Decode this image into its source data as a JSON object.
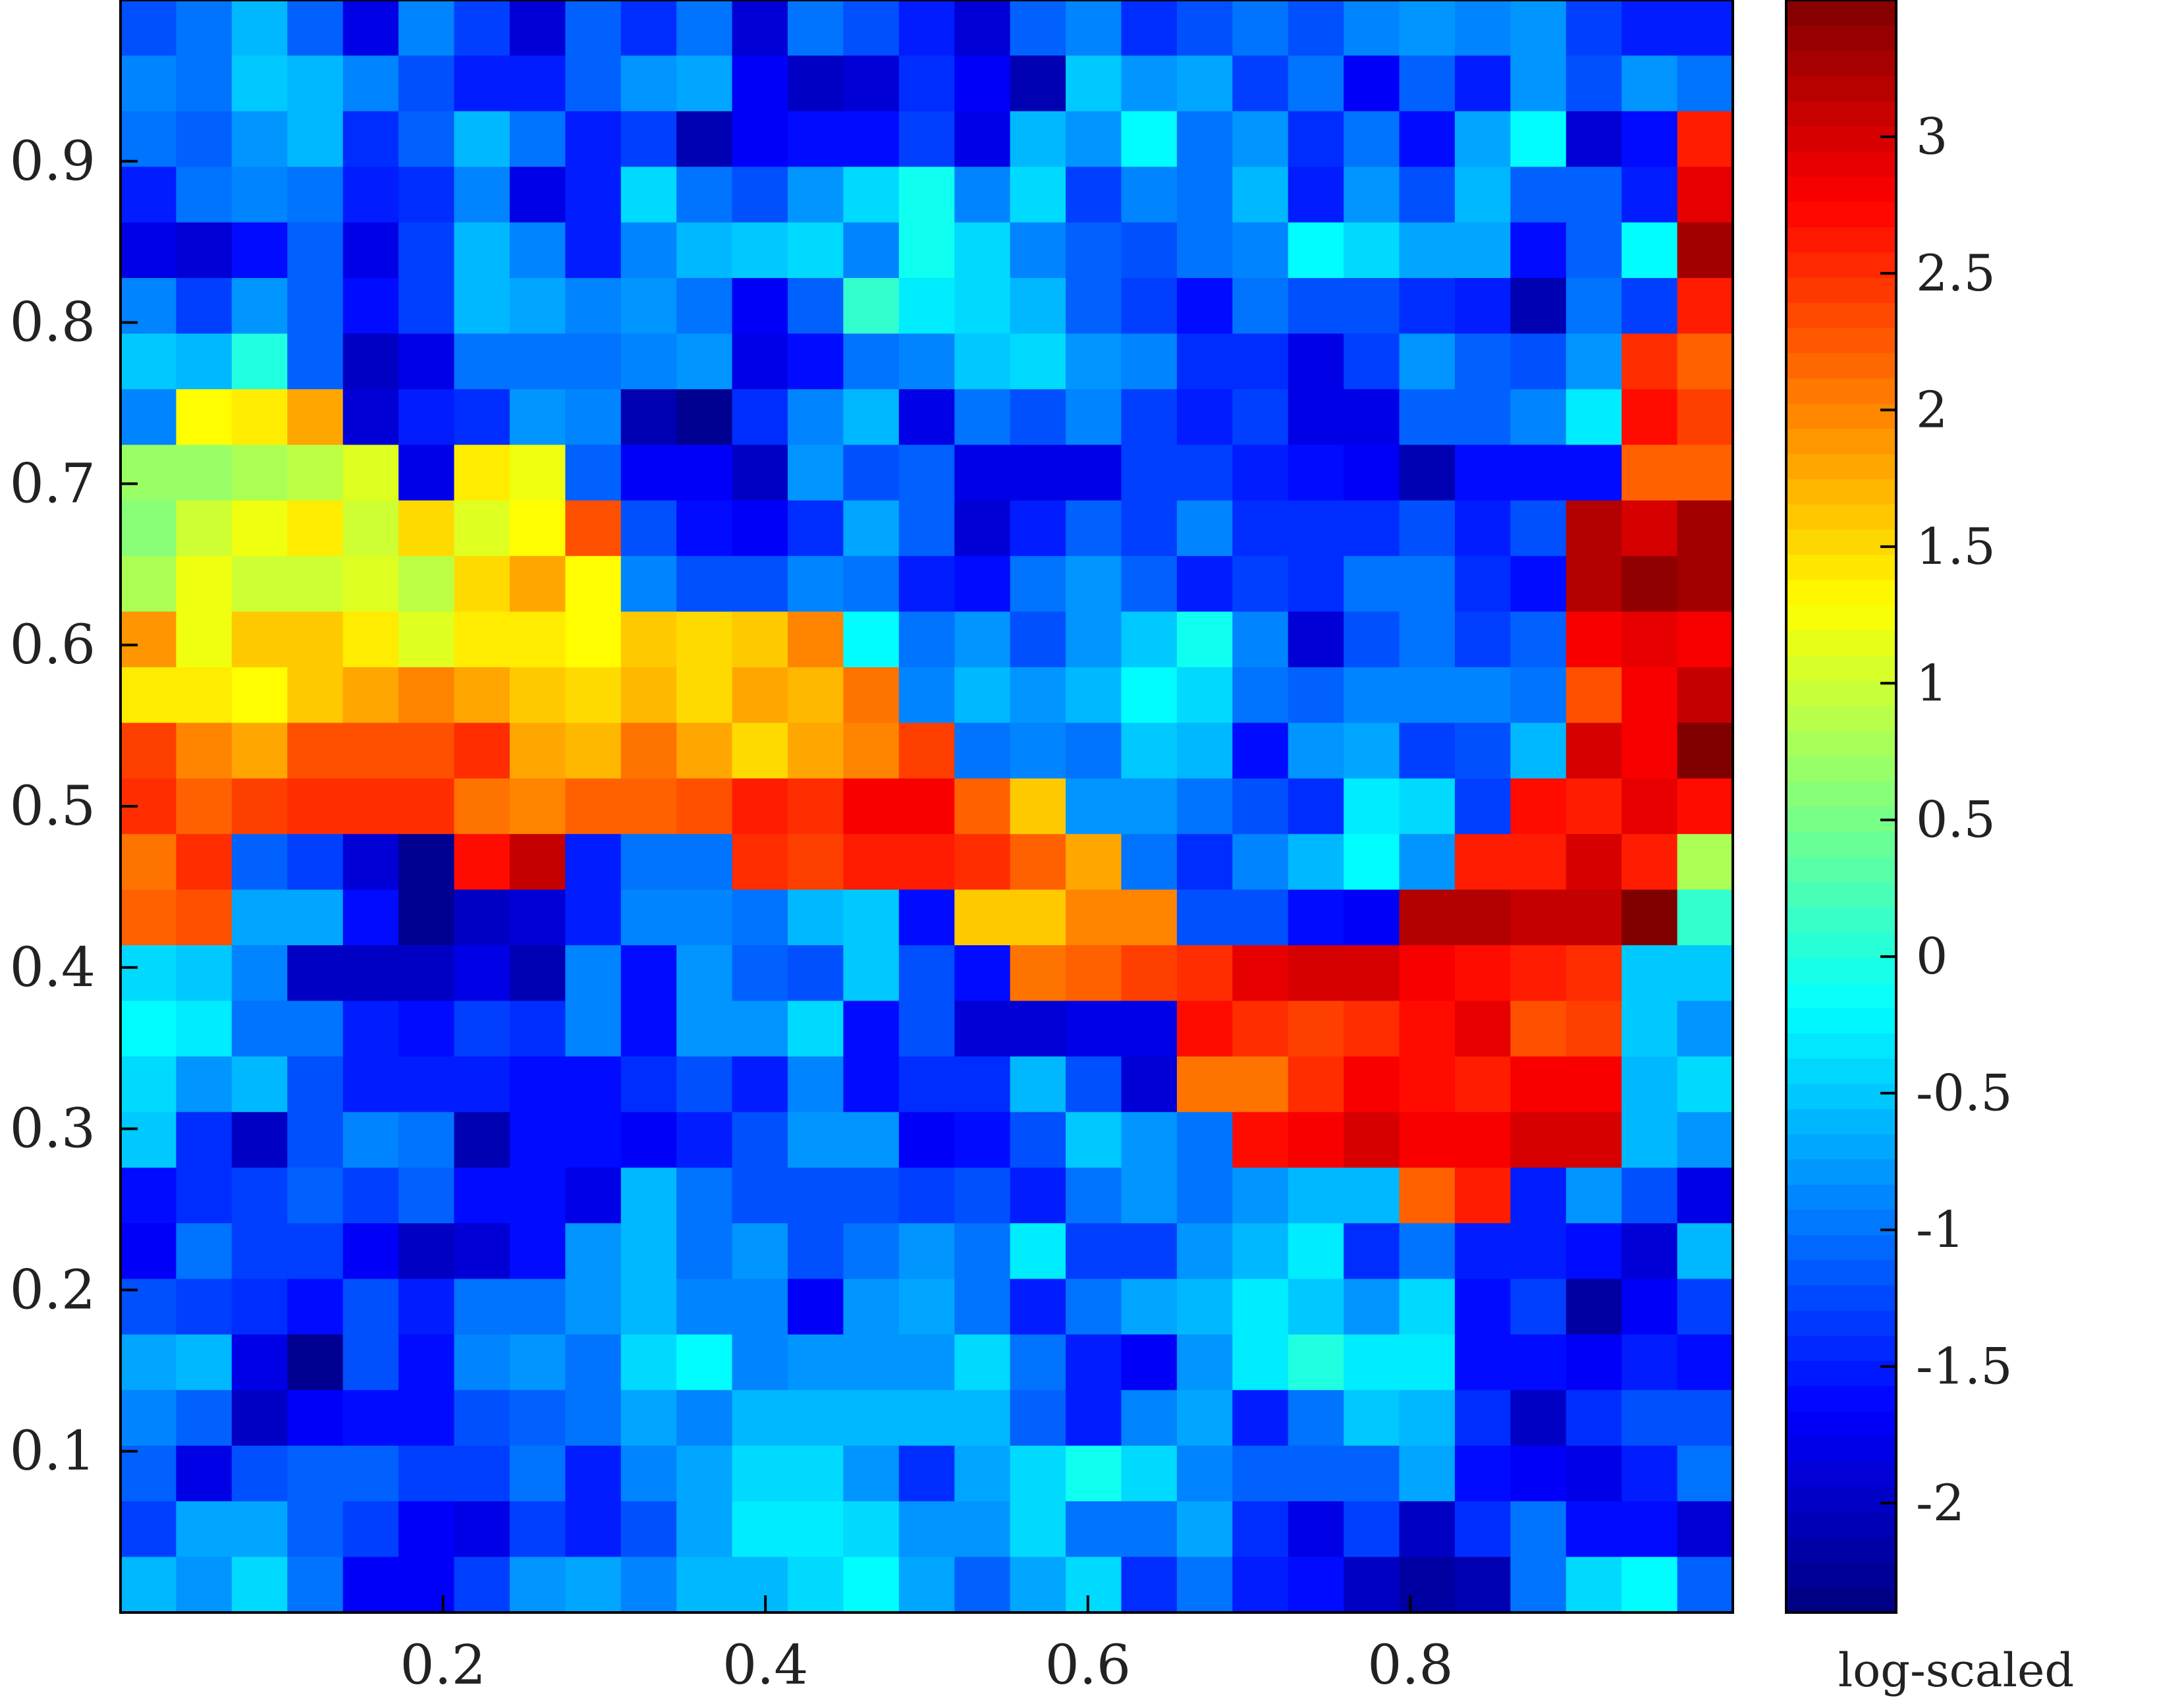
{
  "chart_data": {
    "type": "heatmap",
    "title": "",
    "xlabel": "",
    "ylabel": "",
    "xlim": [
      0,
      1
    ],
    "ylim": [
      0,
      1
    ],
    "n_cols": 29,
    "n_rows": 29,
    "x_ticks": [
      {
        "value": 0.2,
        "label": "0.2"
      },
      {
        "value": 0.4,
        "label": "0.4"
      },
      {
        "value": 0.6,
        "label": "0.6"
      },
      {
        "value": 0.8,
        "label": "0.8"
      }
    ],
    "y_ticks": [
      {
        "value": 0.1,
        "label": "0.1"
      },
      {
        "value": 0.2,
        "label": "0.2"
      },
      {
        "value": 0.3,
        "label": "0.3"
      },
      {
        "value": 0.4,
        "label": "0.4"
      },
      {
        "value": 0.5,
        "label": "0.5"
      },
      {
        "value": 0.6,
        "label": "0.6"
      },
      {
        "value": 0.7,
        "label": "0.7"
      },
      {
        "value": 0.8,
        "label": "0.8"
      },
      {
        "value": 0.9,
        "label": "0.9"
      }
    ],
    "colorbar": {
      "title": "log-scaled",
      "colormap": "jet",
      "min": -2.4,
      "max": 3.5,
      "ticks": [
        {
          "value": -2,
          "label": "-2"
        },
        {
          "value": -1.5,
          "label": "-1.5"
        },
        {
          "value": -1,
          "label": "-1"
        },
        {
          "value": -0.5,
          "label": "-0.5"
        },
        {
          "value": 0,
          "label": "0"
        },
        {
          "value": 0.5,
          "label": "0.5"
        },
        {
          "value": 1,
          "label": "1"
        },
        {
          "value": 1.5,
          "label": "1.5"
        },
        {
          "value": 2,
          "label": "2"
        },
        {
          "value": 2.5,
          "label": "2.5"
        },
        {
          "value": 3,
          "label": "3"
        }
      ]
    },
    "rows_top_to_bottom": [
      [
        -1.2,
        -1.0,
        -0.6,
        -1.1,
        -1.8,
        -0.9,
        -1.3,
        -1.9,
        -1.1,
        -1.4,
        -1.0,
        -1.9,
        -1.0,
        -1.2,
        -1.5,
        -1.9,
        -1.1,
        -0.9,
        -1.4,
        -1.2,
        -1.0,
        -1.2,
        -0.9,
        -0.8,
        -0.9,
        -0.8,
        -1.3,
        -1.5,
        -1.5
      ],
      [
        -0.9,
        -1.0,
        -0.5,
        -0.6,
        -0.9,
        -1.2,
        -1.5,
        -1.5,
        -1.1,
        -0.8,
        -0.7,
        -1.7,
        -2.0,
        -1.9,
        -1.4,
        -1.7,
        -2.1,
        -0.5,
        -0.8,
        -0.7,
        -1.3,
        -1.0,
        -1.7,
        -1.1,
        -1.5,
        -0.8,
        -1.2,
        -0.8,
        -1.0
      ],
      [
        -1.0,
        -1.1,
        -0.8,
        -0.6,
        -1.4,
        -1.1,
        -0.6,
        -1.0,
        -1.5,
        -1.3,
        -2.1,
        -1.7,
        -1.6,
        -1.6,
        -1.3,
        -1.8,
        -0.6,
        -0.8,
        -0.2,
        -1.0,
        -0.8,
        -1.4,
        -1.0,
        -1.6,
        -0.7,
        -0.2,
        -1.9,
        -1.6,
        2.6
      ],
      [
        -1.5,
        -1.0,
        -0.9,
        -1.0,
        -1.5,
        -1.4,
        -0.9,
        -1.8,
        -1.5,
        -0.4,
        -1.0,
        -1.2,
        -0.8,
        -0.4,
        -0.1,
        -0.9,
        -0.4,
        -1.3,
        -0.9,
        -1.0,
        -0.6,
        -1.5,
        -0.8,
        -1.2,
        -0.6,
        -1.1,
        -1.1,
        -1.5,
        2.9
      ],
      [
        -1.8,
        -1.9,
        -1.6,
        -1.1,
        -1.8,
        -1.3,
        -0.6,
        -0.9,
        -1.5,
        -0.9,
        -0.6,
        -0.5,
        -0.4,
        -0.9,
        -0.1,
        -0.4,
        -0.9,
        -1.1,
        -1.2,
        -1.0,
        -0.9,
        -0.2,
        -0.4,
        -0.7,
        -0.7,
        -1.6,
        -1.1,
        -0.2,
        3.3
      ],
      [
        -0.9,
        -1.3,
        -0.8,
        -1.1,
        -1.6,
        -1.3,
        -0.6,
        -0.7,
        -0.9,
        -0.8,
        -1.0,
        -1.7,
        -1.1,
        0.1,
        -0.3,
        -0.4,
        -0.6,
        -1.1,
        -1.3,
        -1.6,
        -1.0,
        -1.2,
        -1.2,
        -1.4,
        -1.5,
        -2.1,
        -1.0,
        -1.3,
        2.6
      ],
      [
        -0.5,
        -0.6,
        0.0,
        -1.1,
        -2.0,
        -1.8,
        -1.0,
        -1.0,
        -1.0,
        -0.9,
        -0.8,
        -1.8,
        -1.6,
        -1.0,
        -0.9,
        -0.5,
        -0.4,
        -0.8,
        -0.9,
        -1.4,
        -1.4,
        -1.8,
        -1.3,
        -0.8,
        -1.1,
        -1.2,
        -0.8,
        2.5,
        2.2
      ],
      [
        -0.9,
        1.3,
        1.4,
        1.8,
        -1.9,
        -1.5,
        -1.4,
        -0.8,
        -0.9,
        -2.1,
        -2.3,
        -1.4,
        -0.9,
        -0.6,
        -1.8,
        -1.0,
        -1.2,
        -0.9,
        -1.3,
        -1.5,
        -1.3,
        -1.8,
        -1.8,
        -1.1,
        -1.1,
        -0.9,
        -0.3,
        2.7,
        2.4
      ],
      [
        0.7,
        0.7,
        0.8,
        0.9,
        1.1,
        -1.8,
        1.4,
        1.2,
        -1.1,
        -1.7,
        -1.7,
        -2.0,
        -0.8,
        -1.2,
        -1.1,
        -1.8,
        -1.8,
        -1.8,
        -1.3,
        -1.3,
        -1.5,
        -1.6,
        -1.7,
        -2.1,
        -1.6,
        -1.6,
        -1.6,
        2.2,
        2.2
      ],
      [
        0.6,
        1.0,
        1.2,
        1.4,
        1.0,
        1.5,
        1.1,
        1.3,
        2.3,
        -1.2,
        -1.6,
        -1.7,
        -1.4,
        -0.7,
        -1.1,
        -1.9,
        -1.5,
        -1.1,
        -1.3,
        -0.9,
        -1.4,
        -1.4,
        -1.4,
        -1.2,
        -1.5,
        -1.2,
        3.2,
        3.0,
        3.3
      ],
      [
        0.8,
        1.2,
        1.0,
        1.0,
        1.1,
        0.9,
        1.5,
        1.8,
        1.3,
        -0.9,
        -1.2,
        -1.2,
        -0.9,
        -1.0,
        -1.5,
        -1.6,
        -1.0,
        -0.8,
        -1.1,
        -1.5,
        -1.3,
        -1.4,
        -1.0,
        -1.0,
        -1.4,
        -1.6,
        3.2,
        3.4,
        3.3
      ],
      [
        1.9,
        1.2,
        1.6,
        1.6,
        1.4,
        1.1,
        1.4,
        1.4,
        1.3,
        1.6,
        1.5,
        1.6,
        2.0,
        -0.2,
        -1.0,
        -0.8,
        -1.2,
        -0.8,
        -0.5,
        -0.1,
        -0.9,
        -1.9,
        -1.2,
        -1.0,
        -1.3,
        -1.1,
        2.8,
        2.9,
        2.8
      ],
      [
        1.4,
        1.4,
        1.3,
        1.6,
        1.8,
        2.0,
        1.8,
        1.6,
        1.5,
        1.7,
        1.5,
        1.8,
        1.7,
        2.1,
        -0.9,
        -0.6,
        -0.8,
        -0.6,
        -0.2,
        -0.4,
        -1.0,
        -1.1,
        -0.9,
        -0.9,
        -0.9,
        -1.0,
        2.3,
        2.8,
        3.1
      ],
      [
        2.4,
        2.0,
        1.8,
        2.3,
        2.3,
        2.3,
        2.5,
        1.8,
        1.7,
        2.1,
        1.8,
        1.5,
        1.8,
        2.0,
        2.4,
        -1.0,
        -0.9,
        -1.0,
        -0.5,
        -0.6,
        -1.6,
        -0.8,
        -0.7,
        -1.3,
        -1.2,
        -0.6,
        3.0,
        2.8,
        3.5
      ],
      [
        2.5,
        2.2,
        2.4,
        2.5,
        2.5,
        2.5,
        2.1,
        2.0,
        2.2,
        2.2,
        2.3,
        2.6,
        2.5,
        2.8,
        2.8,
        2.2,
        1.6,
        -0.8,
        -0.8,
        -1.0,
        -1.2,
        -1.4,
        -0.3,
        -0.4,
        -1.3,
        2.7,
        2.6,
        2.9,
        2.7
      ],
      [
        2.1,
        2.5,
        -1.1,
        -1.3,
        -1.9,
        -2.3,
        2.7,
        3.1,
        -1.5,
        -1.0,
        -1.0,
        2.5,
        2.4,
        2.6,
        2.6,
        2.5,
        2.2,
        1.8,
        -1.0,
        -1.4,
        -0.9,
        -0.6,
        -0.2,
        -0.8,
        2.6,
        2.6,
        3.0,
        2.6,
        0.8
      ],
      [
        2.2,
        2.3,
        -0.7,
        -0.7,
        -1.6,
        -2.3,
        -2.0,
        -1.9,
        -1.5,
        -0.9,
        -0.9,
        -1.0,
        -0.6,
        -0.5,
        -1.6,
        1.6,
        1.6,
        2.0,
        2.0,
        -1.2,
        -1.2,
        -1.6,
        -1.7,
        3.2,
        3.2,
        3.1,
        3.1,
        3.5,
        0.1
      ],
      [
        -0.4,
        -0.5,
        -0.9,
        -2.0,
        -2.0,
        -2.0,
        -1.8,
        -2.1,
        -0.9,
        -1.6,
        -0.8,
        -1.1,
        -1.2,
        -0.5,
        -1.2,
        -1.6,
        2.1,
        2.2,
        2.4,
        2.5,
        2.9,
        3.0,
        3.0,
        2.8,
        2.7,
        2.6,
        2.5,
        -0.5,
        -0.5
      ],
      [
        -0.2,
        -0.3,
        -1.0,
        -1.0,
        -1.5,
        -1.6,
        -1.3,
        -1.4,
        -0.9,
        -1.6,
        -0.8,
        -0.8,
        -0.4,
        -1.6,
        -1.2,
        -1.9,
        -1.9,
        -1.8,
        -1.8,
        2.7,
        2.5,
        2.4,
        2.5,
        2.7,
        2.9,
        2.3,
        2.4,
        -0.5,
        -0.8
      ],
      [
        -0.4,
        -0.8,
        -0.6,
        -1.2,
        -1.5,
        -1.5,
        -1.5,
        -1.6,
        -1.6,
        -1.4,
        -1.2,
        -1.5,
        -0.9,
        -1.6,
        -1.4,
        -1.4,
        -0.6,
        -1.2,
        -1.9,
        2.1,
        2.1,
        2.5,
        2.8,
        2.7,
        2.6,
        2.8,
        2.8,
        -0.6,
        -0.4
      ],
      [
        -0.5,
        -1.4,
        -2.0,
        -1.2,
        -0.9,
        -1.0,
        -2.1,
        -1.6,
        -1.6,
        -1.7,
        -1.5,
        -1.2,
        -0.8,
        -0.8,
        -1.7,
        -1.6,
        -1.2,
        -0.5,
        -0.8,
        -1.0,
        2.7,
        2.8,
        3.0,
        2.8,
        2.8,
        3.0,
        3.0,
        -0.6,
        -0.8
      ],
      [
        -1.6,
        -1.4,
        -1.3,
        -1.1,
        -1.3,
        -1.1,
        -1.6,
        -1.6,
        -1.8,
        -0.6,
        -1.0,
        -1.2,
        -1.2,
        -1.2,
        -1.3,
        -1.2,
        -1.5,
        -1.0,
        -0.8,
        -1.0,
        -0.8,
        -0.6,
        -0.6,
        2.2,
        2.6,
        -1.5,
        -0.8,
        -1.2,
        -1.8
      ],
      [
        -1.7,
        -1.0,
        -1.3,
        -1.3,
        -1.7,
        -2.0,
        -1.9,
        -1.6,
        -0.8,
        -0.6,
        -1.0,
        -0.8,
        -1.2,
        -1.0,
        -0.8,
        -1.0,
        -0.3,
        -1.3,
        -1.3,
        -0.8,
        -0.6,
        -0.3,
        -1.4,
        -1.0,
        -1.5,
        -1.5,
        -1.6,
        -1.9,
        -0.6
      ],
      [
        -1.2,
        -1.3,
        -1.4,
        -1.6,
        -1.2,
        -1.5,
        -1.0,
        -1.0,
        -0.8,
        -0.6,
        -0.9,
        -0.9,
        -1.7,
        -0.8,
        -0.7,
        -1.0,
        -1.5,
        -1.0,
        -0.7,
        -0.6,
        -0.3,
        -0.5,
        -0.8,
        -0.4,
        -1.6,
        -1.3,
        -2.2,
        -1.7,
        -1.3
      ],
      [
        -0.7,
        -0.6,
        -1.8,
        -2.3,
        -1.2,
        -1.6,
        -0.9,
        -0.8,
        -1.0,
        -0.4,
        -0.2,
        -0.9,
        -0.8,
        -0.8,
        -0.8,
        -0.4,
        -1.0,
        -1.5,
        -1.7,
        -0.8,
        -0.3,
        0.0,
        -0.3,
        -0.3,
        -1.6,
        -1.6,
        -1.7,
        -1.5,
        -1.6
      ],
      [
        -0.9,
        -1.1,
        -2.0,
        -1.7,
        -1.6,
        -1.6,
        -1.2,
        -1.1,
        -1.0,
        -0.7,
        -0.9,
        -0.6,
        -0.6,
        -0.6,
        -0.6,
        -0.6,
        -1.1,
        -1.5,
        -0.9,
        -0.7,
        -1.5,
        -1.0,
        -0.5,
        -0.6,
        -1.4,
        -2.0,
        -1.4,
        -1.2,
        -1.2
      ],
      [
        -1.1,
        -1.8,
        -1.2,
        -1.1,
        -1.1,
        -1.3,
        -1.3,
        -1.0,
        -1.5,
        -0.9,
        -0.7,
        -0.4,
        -0.4,
        -0.8,
        -1.4,
        -0.7,
        -0.4,
        -0.1,
        -0.4,
        -0.9,
        -1.1,
        -1.1,
        -1.1,
        -0.7,
        -1.6,
        -1.7,
        -1.8,
        -1.5,
        -1.0
      ],
      [
        -1.3,
        -0.7,
        -0.7,
        -1.1,
        -1.3,
        -1.7,
        -1.8,
        -1.3,
        -1.5,
        -1.2,
        -0.7,
        -0.3,
        -0.3,
        -0.4,
        -0.8,
        -0.8,
        -0.4,
        -1.0,
        -1.0,
        -0.7,
        -1.4,
        -1.8,
        -1.3,
        -2.0,
        -1.4,
        -1.0,
        -1.6,
        -1.6,
        -1.9
      ],
      [
        -0.6,
        -0.8,
        -0.4,
        -1.0,
        -1.7,
        -1.7,
        -1.3,
        -0.8,
        -0.7,
        -0.9,
        -0.6,
        -0.6,
        -0.4,
        -0.2,
        -0.7,
        -1.1,
        -0.7,
        -0.4,
        -1.4,
        -1.0,
        -1.5,
        -1.6,
        -2.0,
        -2.2,
        -2.1,
        -1.0,
        -0.4,
        -0.2,
        -1.1
      ]
    ]
  }
}
